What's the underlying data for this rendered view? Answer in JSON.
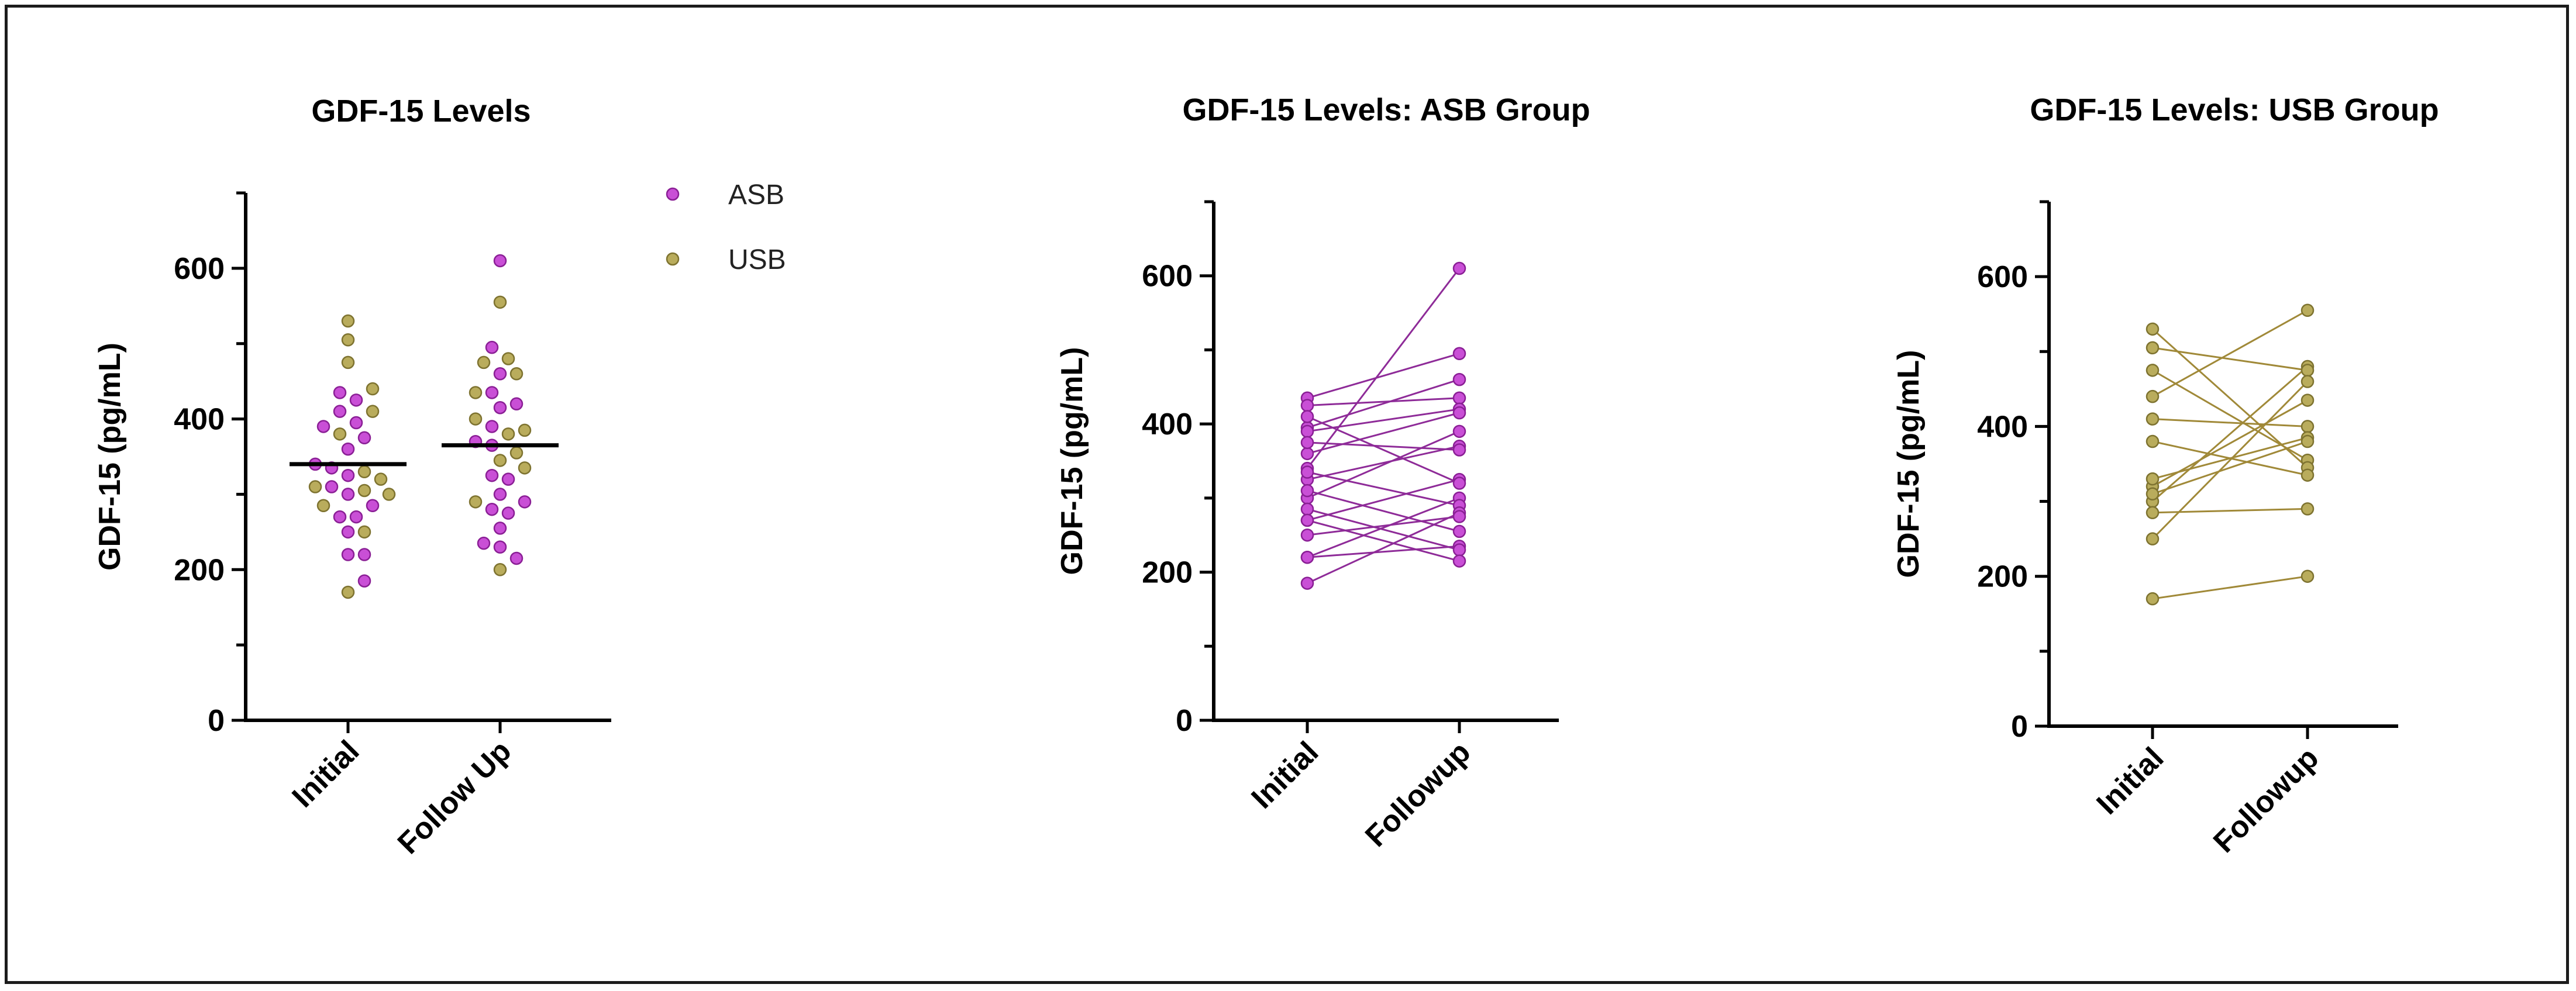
{
  "colors": {
    "asb": "#c94fd6",
    "asb_edge": "#8a1f95",
    "usb": "#b9ac5c",
    "usb_edge": "#7e7330",
    "asb_line": "#8e2b98",
    "usb_line": "#a08938",
    "axis": "#000000",
    "median": "#000000"
  },
  "chart_data": [
    {
      "type": "scatter",
      "id": "overall",
      "title": "GDF-15 Levels",
      "ylabel": "GDF-15 (pg/mL)",
      "xlabel": "",
      "ylim": [
        0,
        700
      ],
      "yticks": [
        0,
        200,
        400,
        600
      ],
      "categories": [
        "Initial",
        "Follow Up"
      ],
      "legend": [
        "ASB",
        "USB"
      ],
      "medians": [
        340,
        365
      ],
      "series": [
        {
          "name": "ASB",
          "initial": [
            435,
            425,
            410,
            395,
            390,
            375,
            360,
            340,
            335,
            325,
            310,
            300,
            285,
            270,
            270,
            250,
            220,
            220,
            185
          ],
          "followup": [
            610,
            495,
            460,
            435,
            420,
            415,
            390,
            370,
            365,
            325,
            320,
            300,
            290,
            280,
            275,
            255,
            235,
            230,
            215
          ]
        },
        {
          "name": "USB",
          "initial": [
            530,
            505,
            475,
            440,
            410,
            380,
            330,
            320,
            310,
            305,
            300,
            285,
            250,
            170
          ],
          "followup": [
            555,
            480,
            475,
            460,
            435,
            400,
            385,
            380,
            355,
            345,
            335,
            290,
            200
          ]
        }
      ]
    },
    {
      "type": "line",
      "id": "asb",
      "title": "GDF-15 Levels: ASB Group",
      "ylabel": "GDF-15 (pg/mL)",
      "xlabel": "",
      "ylim": [
        0,
        700
      ],
      "yticks": [
        0,
        200,
        400,
        600
      ],
      "categories": [
        "Initial",
        "Followup"
      ],
      "pairs": [
        [
          340,
          610
        ],
        [
          435,
          495
        ],
        [
          395,
          460
        ],
        [
          425,
          435
        ],
        [
          390,
          420
        ],
        [
          360,
          415
        ],
        [
          300,
          390
        ],
        [
          325,
          370
        ],
        [
          375,
          365
        ],
        [
          270,
          325
        ],
        [
          410,
          320
        ],
        [
          220,
          300
        ],
        [
          335,
          290
        ],
        [
          185,
          280
        ],
        [
          250,
          275
        ],
        [
          310,
          255
        ],
        [
          220,
          235
        ],
        [
          285,
          230
        ],
        [
          270,
          215
        ]
      ]
    },
    {
      "type": "line",
      "id": "usb",
      "title": "GDF-15 Levels: USB Group",
      "ylabel": "GDF-15 (pg/mL)",
      "xlabel": "",
      "ylim": [
        0,
        700
      ],
      "yticks": [
        0,
        200,
        400,
        600
      ],
      "categories": [
        "Initial",
        "Followup"
      ],
      "pairs": [
        [
          440,
          555
        ],
        [
          300,
          480
        ],
        [
          505,
          475
        ],
        [
          250,
          460
        ],
        [
          320,
          435
        ],
        [
          410,
          400
        ],
        [
          330,
          385
        ],
        [
          310,
          380
        ],
        [
          475,
          355
        ],
        [
          530,
          345
        ],
        [
          380,
          335
        ],
        [
          285,
          290
        ],
        [
          170,
          200
        ]
      ]
    }
  ]
}
